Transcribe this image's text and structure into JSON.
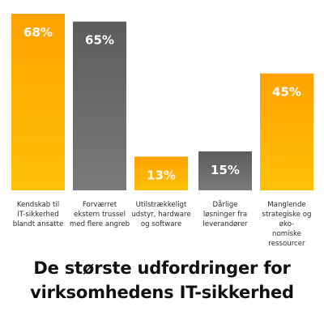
{
  "chart_data": {
    "type": "bar",
    "categories": [
      "Kendskab til IT-sikkerhed blandt ansatte",
      "Forværret ekstern trussel med flere angreb",
      "Utilstrækkeligt udstyr, hardware og software",
      "Dårlige løsninger fra leverandører",
      "Manglende strategiske og øko-nomiske ressourcer"
    ],
    "category_lines": [
      [
        "Kendskab til",
        "IT-sikkerhed",
        "blandt ansatte"
      ],
      [
        "Forværret",
        "ekstern trussel",
        "med flere angreb"
      ],
      [
        "Utilstrækkeligt",
        "udstyr, hardware",
        "og software"
      ],
      [
        "Dårlige",
        "løsninger fra",
        "leverandører"
      ],
      [
        "Manglende",
        "strategiske og øko-",
        "nomiske ressourcer"
      ]
    ],
    "values": [
      68,
      65,
      13,
      15,
      45
    ],
    "value_labels": [
      "68%",
      "65%",
      "13%",
      "15%",
      "45%"
    ],
    "bar_colors": [
      "#ffa500",
      "#666666",
      "#ffa500",
      "#666666",
      "#ffa500"
    ],
    "title": "De største udfordringer for virksomhedens IT-sikkerhed",
    "title_lines": [
      "De største udfordringer for",
      "virksomhedens IT-sikkerhed"
    ],
    "ylim": [
      0,
      68
    ],
    "grid": false,
    "legend": "none"
  }
}
